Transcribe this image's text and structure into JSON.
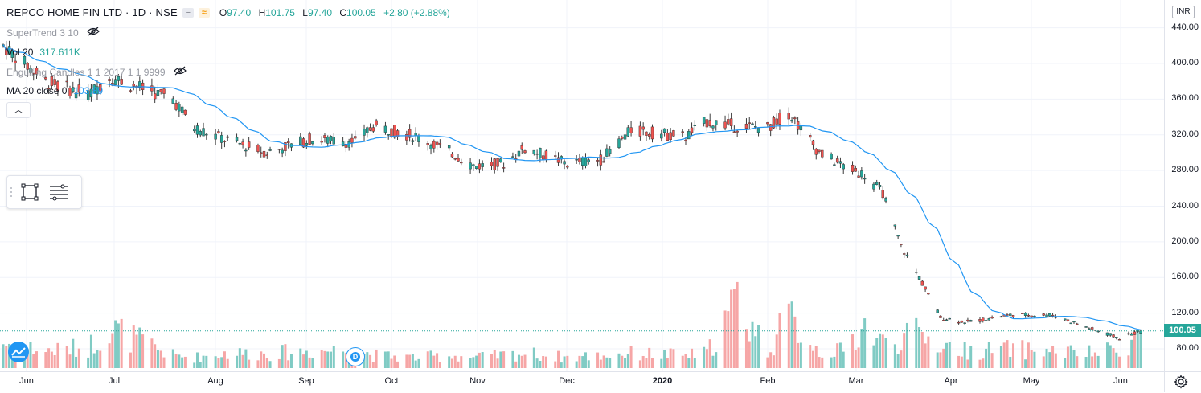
{
  "header": {
    "symbol": "REPCO HOME FIN LTD · 1D · NSE",
    "ohlc": {
      "o_label": "O",
      "o": "97.40",
      "h_label": "H",
      "h": "101.75",
      "l_label": "L",
      "l": "97.40",
      "c_label": "C",
      "c": "100.05",
      "change": "+2.80 (+2.88%)"
    }
  },
  "indicators": [
    {
      "name": "SuperTrend 3 10",
      "value": ""
    },
    {
      "name": "Vol 20",
      "value": "317.611K"
    },
    {
      "name": "Engulfing Candles 1 1 2017 1 1 9999",
      "value": ""
    },
    {
      "name": "MA 20 close 0",
      "value": "103.89"
    }
  ],
  "price_axis": {
    "currency": "INR",
    "labels": [
      "440.00",
      "400.00",
      "360.00",
      "320.00",
      "280.00",
      "240.00",
      "200.00",
      "160.00",
      "120.00",
      "80.00"
    ],
    "current_price": "100.05"
  },
  "time_axis": {
    "labels": [
      "Jun",
      "Jul",
      "Aug",
      "Sep",
      "Oct",
      "Nov",
      "Dec",
      "2020",
      "Feb",
      "Mar",
      "Apr",
      "May",
      "Jun"
    ]
  },
  "marker": {
    "letter": "D"
  },
  "icons": {
    "hide": "eye-crossed-icon",
    "collapse": "chevron-up-icon",
    "rectangle": "rectangle-tool-icon",
    "lines": "lines-tool-icon",
    "settings": "gear-icon",
    "logo": "tradingview-logo-icon"
  },
  "colors": {
    "up": "#26a69a",
    "down": "#ef5350",
    "vol_up": "#80cbc4",
    "vol_down": "#f6a6a6",
    "ma": "#2196f3",
    "grid": "#f0f3fa"
  },
  "chart_data": {
    "type": "candlestick",
    "ma_period": 20,
    "ylim": [
      70,
      450
    ],
    "last_price": 100.05,
    "candles_anchor_path": [
      {
        "t": "2019-05-27",
        "close": 420,
        "vol": 60
      },
      {
        "t": "2019-06-10",
        "close": 380,
        "vol": 40
      },
      {
        "t": "2019-06-24",
        "close": 365,
        "vol": 50
      },
      {
        "t": "2019-07-01",
        "close": 385,
        "vol": 95
      },
      {
        "t": "2019-07-22",
        "close": 360,
        "vol": 30
      },
      {
        "t": "2019-07-29",
        "close": 328,
        "vol": 25
      },
      {
        "t": "2019-08-08",
        "close": 315,
        "vol": 35
      },
      {
        "t": "2019-08-22",
        "close": 300,
        "vol": 35
      },
      {
        "t": "2019-09-05",
        "close": 315,
        "vol": 40
      },
      {
        "t": "2019-09-20",
        "close": 312,
        "vol": 45
      },
      {
        "t": "2019-09-26",
        "close": 330,
        "vol": 30
      },
      {
        "t": "2019-10-10",
        "close": 318,
        "vol": 25
      },
      {
        "t": "2019-10-22",
        "close": 300,
        "vol": 30
      },
      {
        "t": "2019-10-29",
        "close": 285,
        "vol": 25
      },
      {
        "t": "2019-11-08",
        "close": 288,
        "vol": 30
      },
      {
        "t": "2019-11-15",
        "close": 305,
        "vol": 35
      },
      {
        "t": "2019-11-29",
        "close": 288,
        "vol": 25
      },
      {
        "t": "2019-12-10",
        "close": 292,
        "vol": 30
      },
      {
        "t": "2019-12-20",
        "close": 325,
        "vol": 35
      },
      {
        "t": "2020-01-07",
        "close": 318,
        "vol": 30
      },
      {
        "t": "2020-01-14",
        "close": 335,
        "vol": 35
      },
      {
        "t": "2020-01-24",
        "close": 330,
        "vol": 160
      },
      {
        "t": "2020-02-03",
        "close": 328,
        "vol": 40
      },
      {
        "t": "2020-02-10",
        "close": 345,
        "vol": 120
      },
      {
        "t": "2020-02-20",
        "close": 300,
        "vol": 40
      },
      {
        "t": "2020-02-28",
        "close": 285,
        "vol": 40
      },
      {
        "t": "2020-03-06",
        "close": 275,
        "vol": 100
      },
      {
        "t": "2020-03-12",
        "close": 255,
        "vol": 60
      },
      {
        "t": "2020-03-18",
        "close": 195,
        "vol": 70
      },
      {
        "t": "2020-03-24",
        "close": 160,
        "vol": 80
      },
      {
        "t": "2020-03-31",
        "close": 115,
        "vol": 55
      },
      {
        "t": "2020-04-09",
        "close": 110,
        "vol": 40
      },
      {
        "t": "2020-04-23",
        "close": 118,
        "vol": 45
      },
      {
        "t": "2020-05-07",
        "close": 118,
        "vol": 40
      },
      {
        "t": "2020-05-20",
        "close": 102,
        "vol": 35
      },
      {
        "t": "2020-05-29",
        "close": 92,
        "vol": 45
      },
      {
        "t": "2020-06-05",
        "close": 100,
        "vol": 80
      }
    ]
  }
}
